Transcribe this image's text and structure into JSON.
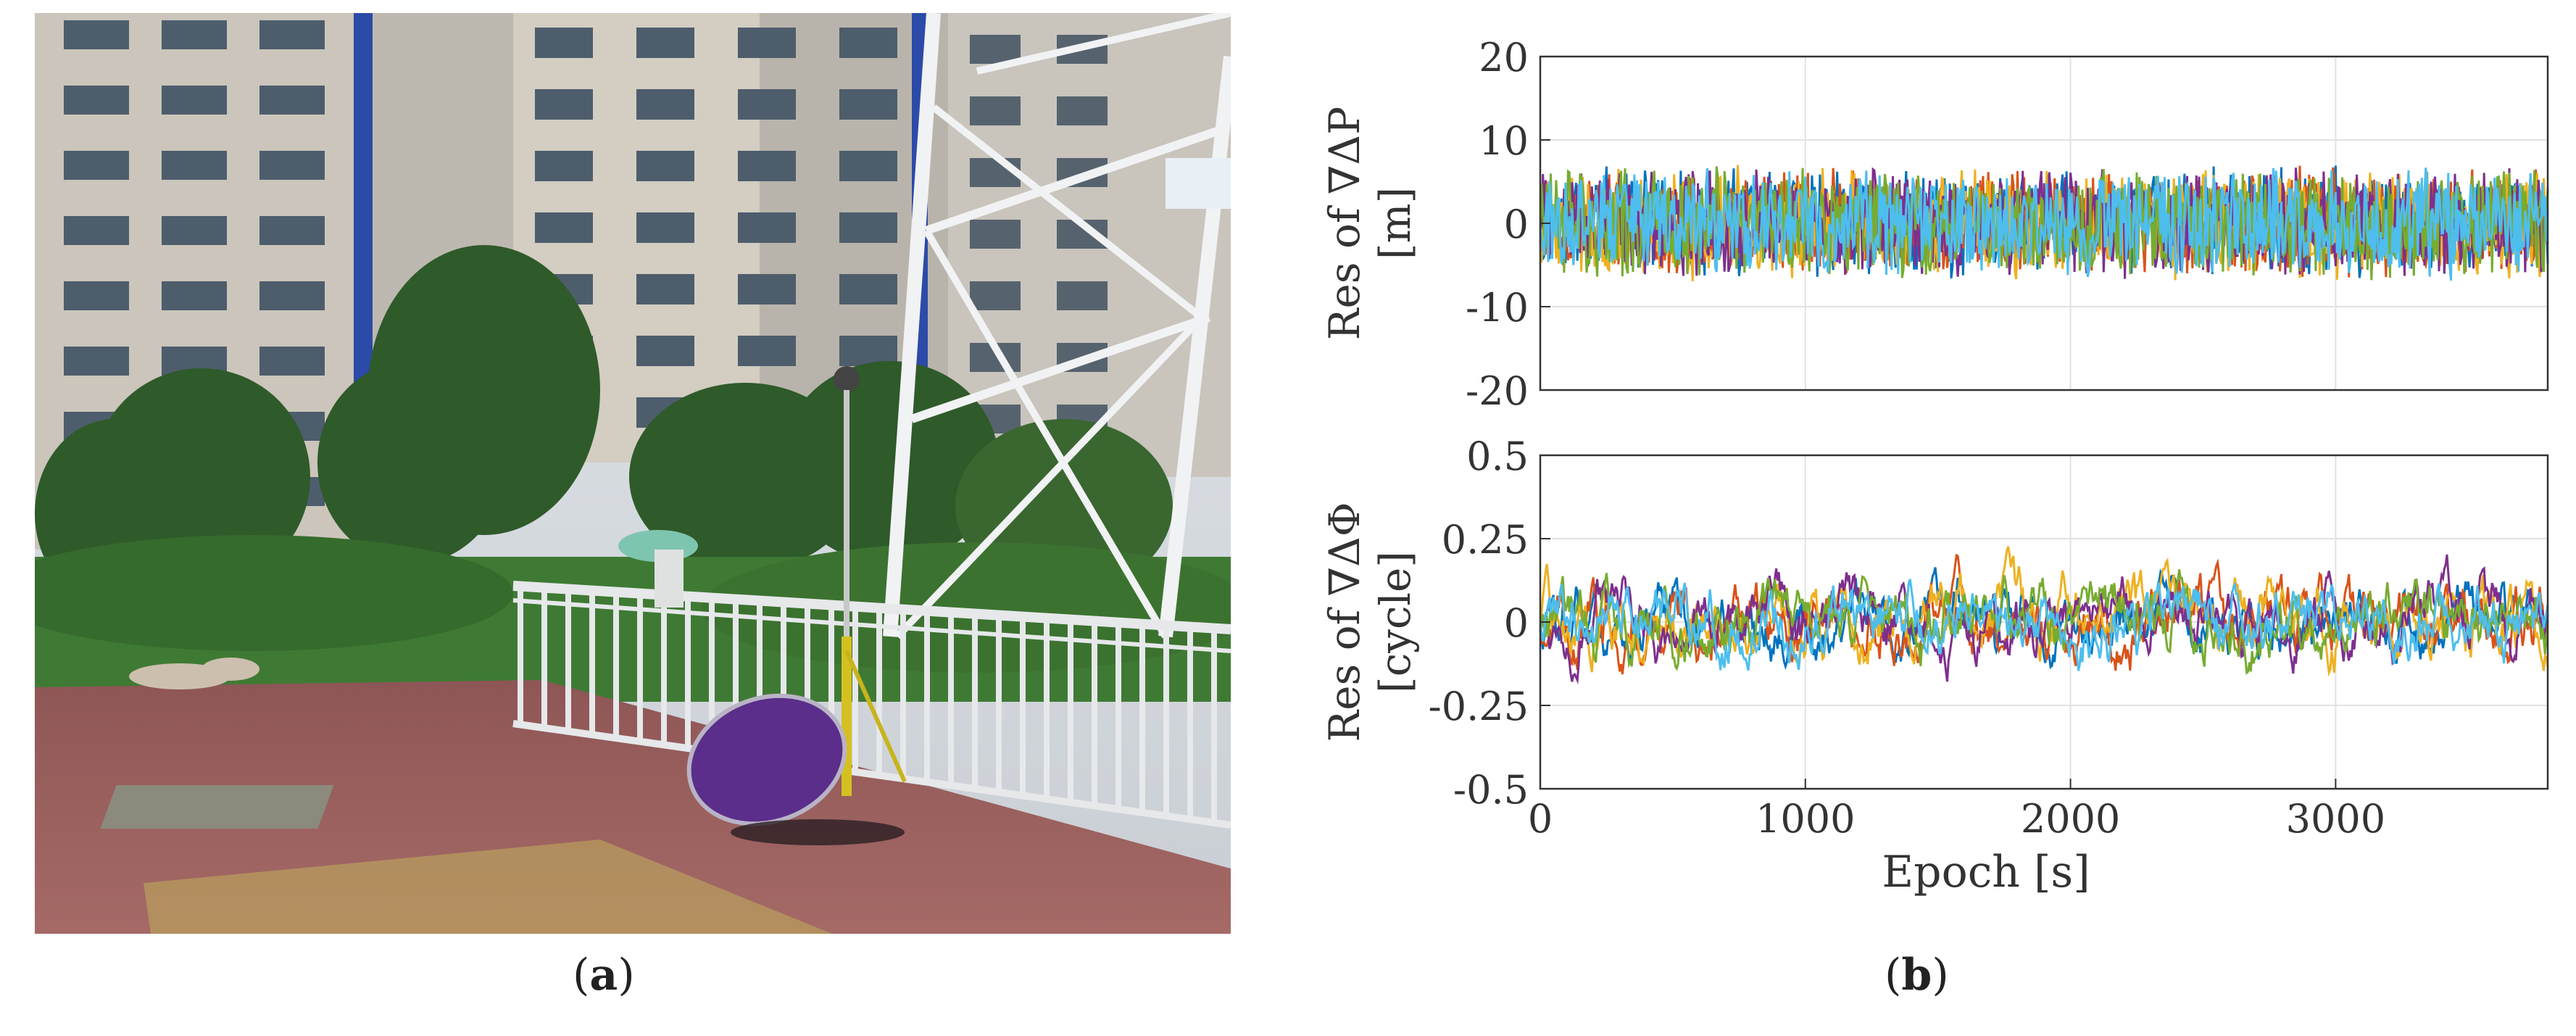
{
  "photo": {
    "scene": "outdoor-gnss-test-site",
    "colors": {
      "sky": "#d8dde3",
      "building": "#cfc9bf",
      "building_shadow": "#a9a49c",
      "window": "#4a5a6a",
      "blue_stripe": "#2c4aa8",
      "tree": "#2f5a2a",
      "grass": "#3f7a34",
      "pavement": "#9a5a5a",
      "fence": "#e6e8ea",
      "umbrella": "#5a2e8a",
      "pole": "#d4c020"
    }
  },
  "labels": {
    "a": {
      "open": "(",
      "letter": "a",
      "close": ")"
    },
    "b": {
      "open": "(",
      "letter": "b",
      "close": ")"
    }
  },
  "chart_data": [
    {
      "type": "line",
      "ylabel_line1": "Res of ∇ΔP",
      "ylabel_line2": "[m]",
      "xlabel": "",
      "xlim": [
        0,
        3800
      ],
      "ylim": [
        -20,
        20
      ],
      "yticks": [
        "20",
        "10",
        "0",
        "-10",
        "-20"
      ],
      "xticks": [],
      "grid": true,
      "series_colors": [
        "#0072bd",
        "#d95319",
        "#edb120",
        "#7e2f8e",
        "#77ac30",
        "#4dbeee"
      ],
      "amplitude": 5
    },
    {
      "type": "line",
      "ylabel_line1": "Res of ∇ΔΦ",
      "ylabel_line2": "[cycle]",
      "xlabel": "Epoch [s]",
      "xlim": [
        0,
        3800
      ],
      "ylim": [
        -0.5,
        0.5
      ],
      "yticks": [
        "0.5",
        "0.25",
        "0",
        "-0.25",
        "-0.5"
      ],
      "xticks": [
        "0",
        "1000",
        "2000",
        "3000"
      ],
      "grid": true,
      "series_colors": [
        "#0072bd",
        "#d95319",
        "#edb120",
        "#7e2f8e",
        "#77ac30",
        "#4dbeee"
      ],
      "amplitude": 0.08
    }
  ]
}
